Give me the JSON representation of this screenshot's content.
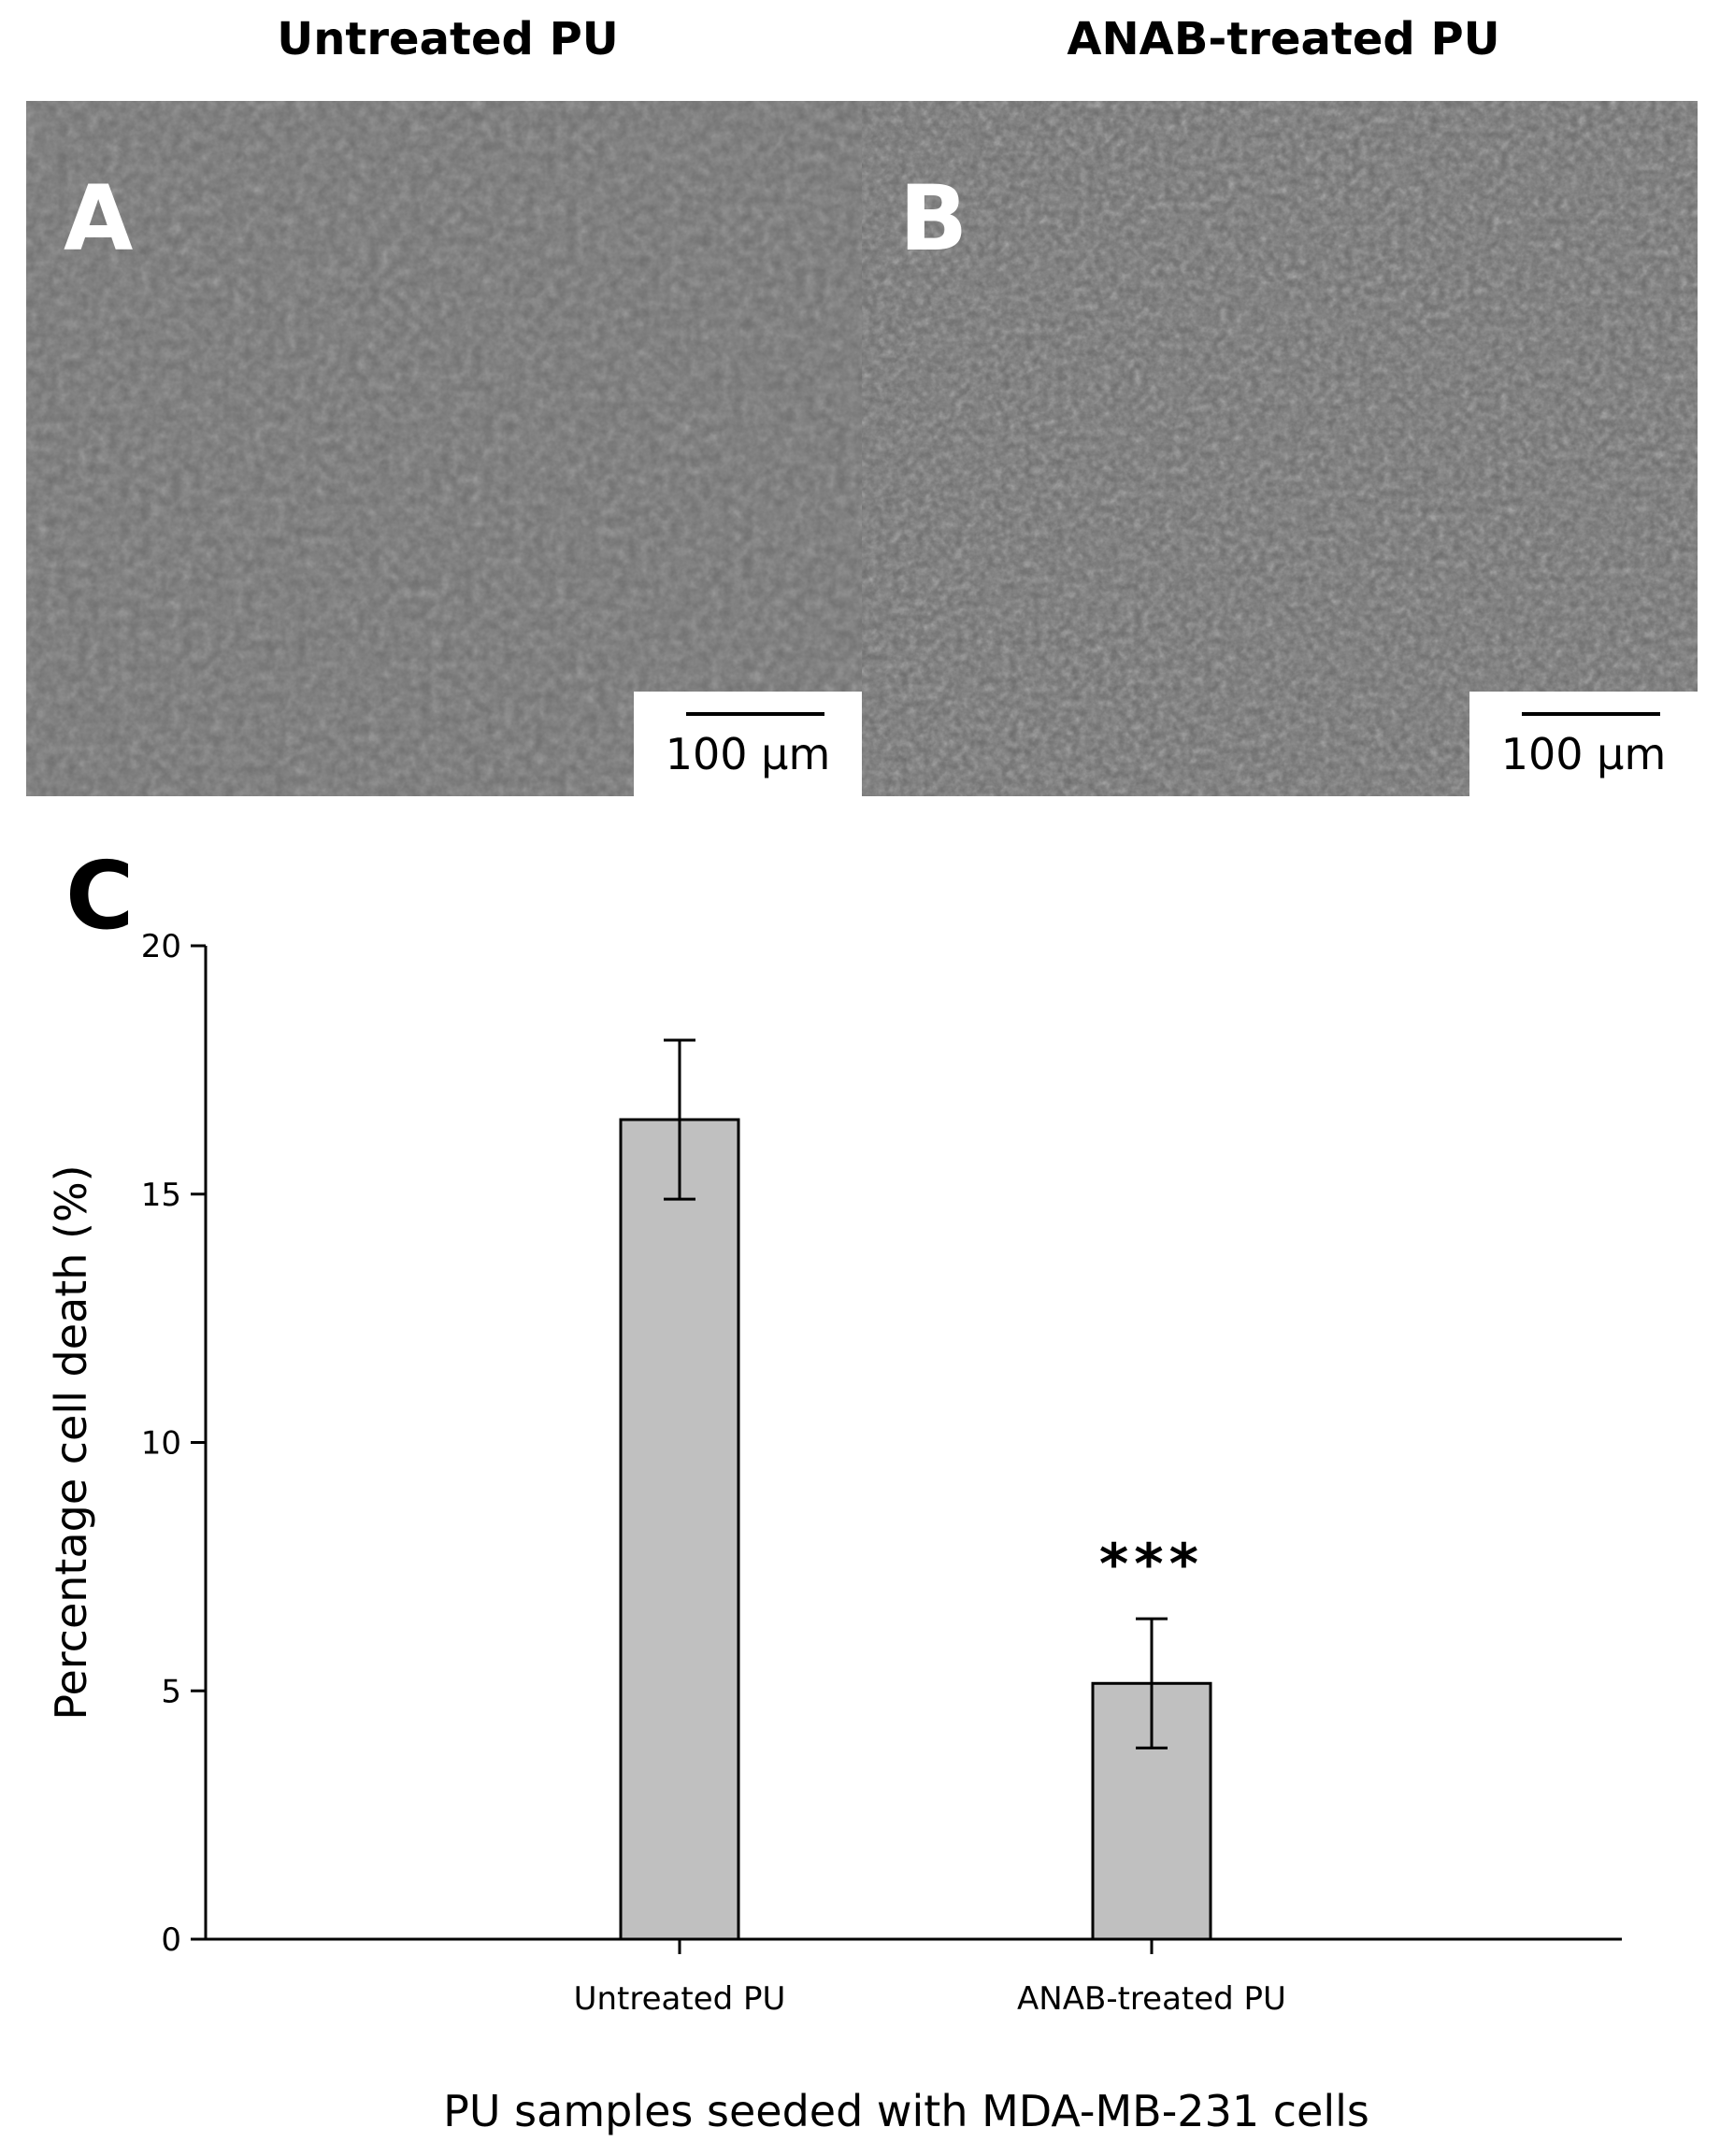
{
  "panels": [
    {
      "letter": "A",
      "title": "Untreated PU",
      "scale_label": "100 µm"
    },
    {
      "letter": "B",
      "title": "ANAB-treated PU",
      "scale_label": "100 µm"
    }
  ],
  "chart_letter": "C",
  "chart_data": {
    "type": "bar",
    "categories": [
      "Untreated PU",
      "ANAB-treated PU"
    ],
    "values": [
      16.5,
      5.15
    ],
    "error": [
      1.6,
      1.3
    ],
    "annotations": [
      "",
      "***"
    ],
    "xlabel": "PU samples seeded with MDA-MB-231 cells",
    "ylabel": "Percentage cell death (%)",
    "ylim": [
      0,
      20
    ],
    "yticks": [
      0,
      5,
      10,
      15,
      20
    ],
    "bar_color": "#c0c0c0",
    "grid": false,
    "legend": "none"
  }
}
